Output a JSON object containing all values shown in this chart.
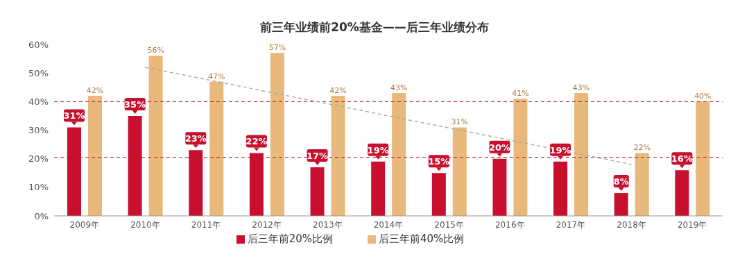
{
  "chart_data": {
    "type": "bar",
    "title": "前三年业绩前20%基金——后三年业绩分布",
    "categories": [
      "2009年",
      "2010年",
      "2011年",
      "2012年",
      "2013年",
      "2014年",
      "2015年",
      "2016年",
      "2017年",
      "2018年",
      "2019年"
    ],
    "series": [
      {
        "name": "后三年前20%比例",
        "color": "#c8102e",
        "values": [
          31,
          35,
          23,
          22,
          17,
          19,
          15,
          20,
          19,
          8,
          16
        ],
        "value_labels": [
          "31%",
          "35%",
          "23%",
          "22%",
          "17%",
          "19%",
          "15%",
          "20%",
          "19%",
          "8%",
          "16%"
        ]
      },
      {
        "name": "后三年前40%比例",
        "color": "#e8b97a",
        "values": [
          42,
          56,
          47,
          57,
          42,
          43,
          31,
          41,
          43,
          22,
          40
        ],
        "value_labels": [
          "42%",
          "56%",
          "47%",
          "57%",
          "42%",
          "43%",
          "31%",
          "41%",
          "43%",
          "22%",
          "40%"
        ]
      },
      {
        "type": "line",
        "color": "#aaaaaa",
        "x": [
          "2010年",
          "2018年"
        ],
        "values": [
          52,
          18
        ],
        "line_style": "dashed",
        "marker": "none"
      }
    ],
    "ylim": [
      0,
      60
    ],
    "yticks": [
      {
        "value": 0,
        "label": "0%"
      },
      {
        "value": 10,
        "label": "10%"
      },
      {
        "value": 20,
        "label": "20%"
      },
      {
        "value": 30,
        "label": "30%"
      },
      {
        "value": 40,
        "label": "40%"
      },
      {
        "value": 50,
        "label": "50%"
      },
      {
        "value": 60,
        "label": "60%"
      }
    ],
    "ref_lines": [
      {
        "axis": "y",
        "value": 40,
        "color": "#b01c2e",
        "line_style": "dashed"
      },
      {
        "axis": "y",
        "value": 20.5,
        "color": "#b01c2e",
        "line_style": "dashed"
      }
    ],
    "grid": false,
    "legend": "bottom"
  }
}
